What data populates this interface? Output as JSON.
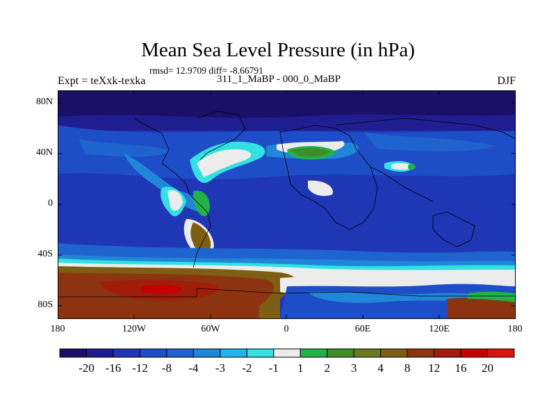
{
  "title": "Mean Sea Level Pressure (in hPa)",
  "stats": "rmsd= 12.9709 diff= -8.66791",
  "experiment": "Expt = teXxk-texka",
  "comparison": "311_1_MaBP - 000_0_MaBP",
  "season": "DJF",
  "lat_labels": [
    "80N",
    "40N",
    "0",
    "40S",
    "80S"
  ],
  "lon_labels": [
    "180",
    "120W",
    "60W",
    "0",
    "60E",
    "120E",
    "180"
  ],
  "colorbar": {
    "labels": [
      "-20",
      "-16",
      "-12",
      "-8",
      "-4",
      "-3",
      "-2",
      "-1",
      "1",
      "2",
      "3",
      "4",
      "8",
      "12",
      "16",
      "20"
    ],
    "colors": [
      "#1a1068",
      "#1e1e90",
      "#1f36b5",
      "#1e4dc8",
      "#1f63cf",
      "#2087d8",
      "#22b4ea",
      "#33e0e2",
      "#ececec",
      "#23b24a",
      "#3f8d29",
      "#6b7a1e",
      "#7d5e12",
      "#8c3410",
      "#a01e08",
      "#c40000",
      "#d8140e"
    ]
  }
}
